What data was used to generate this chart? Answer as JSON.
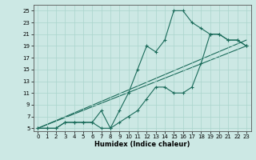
{
  "title": "",
  "xlabel": "Humidex (Indice chaleur)",
  "bg_color": "#cce8e4",
  "grid_color": "#aad4cc",
  "line_color": "#1a6b5a",
  "xlim": [
    -0.5,
    23.5
  ],
  "ylim": [
    4.5,
    26
  ],
  "xticks": [
    0,
    1,
    2,
    3,
    4,
    5,
    6,
    7,
    8,
    9,
    10,
    11,
    12,
    13,
    14,
    15,
    16,
    17,
    18,
    19,
    20,
    21,
    22,
    23
  ],
  "yticks": [
    5,
    7,
    9,
    11,
    13,
    15,
    17,
    19,
    21,
    23,
    25
  ],
  "main_x": [
    0,
    1,
    2,
    3,
    4,
    5,
    6,
    7,
    8,
    9,
    10,
    11,
    12,
    13,
    14,
    15,
    16,
    17,
    18,
    19,
    20,
    21,
    22,
    23
  ],
  "main_y": [
    5,
    5,
    5,
    6,
    6,
    6,
    6,
    8,
    5,
    8,
    11,
    15,
    19,
    18,
    20,
    25,
    25,
    23,
    22,
    21,
    21,
    20,
    20,
    19
  ],
  "second_x": [
    0,
    1,
    2,
    3,
    4,
    5,
    6,
    7,
    8,
    9,
    10,
    11,
    12,
    13,
    14,
    15,
    16,
    17,
    18,
    19,
    20,
    21,
    22,
    23
  ],
  "second_y": [
    5,
    5,
    5,
    6,
    6,
    6,
    6,
    5,
    5,
    6,
    7,
    8,
    10,
    12,
    12,
    11,
    11,
    12,
    16,
    21,
    21,
    20,
    20,
    19
  ],
  "line1_x": [
    0,
    23
  ],
  "line1_y": [
    5,
    20
  ],
  "line2_x": [
    0,
    23
  ],
  "line2_y": [
    5,
    19
  ]
}
